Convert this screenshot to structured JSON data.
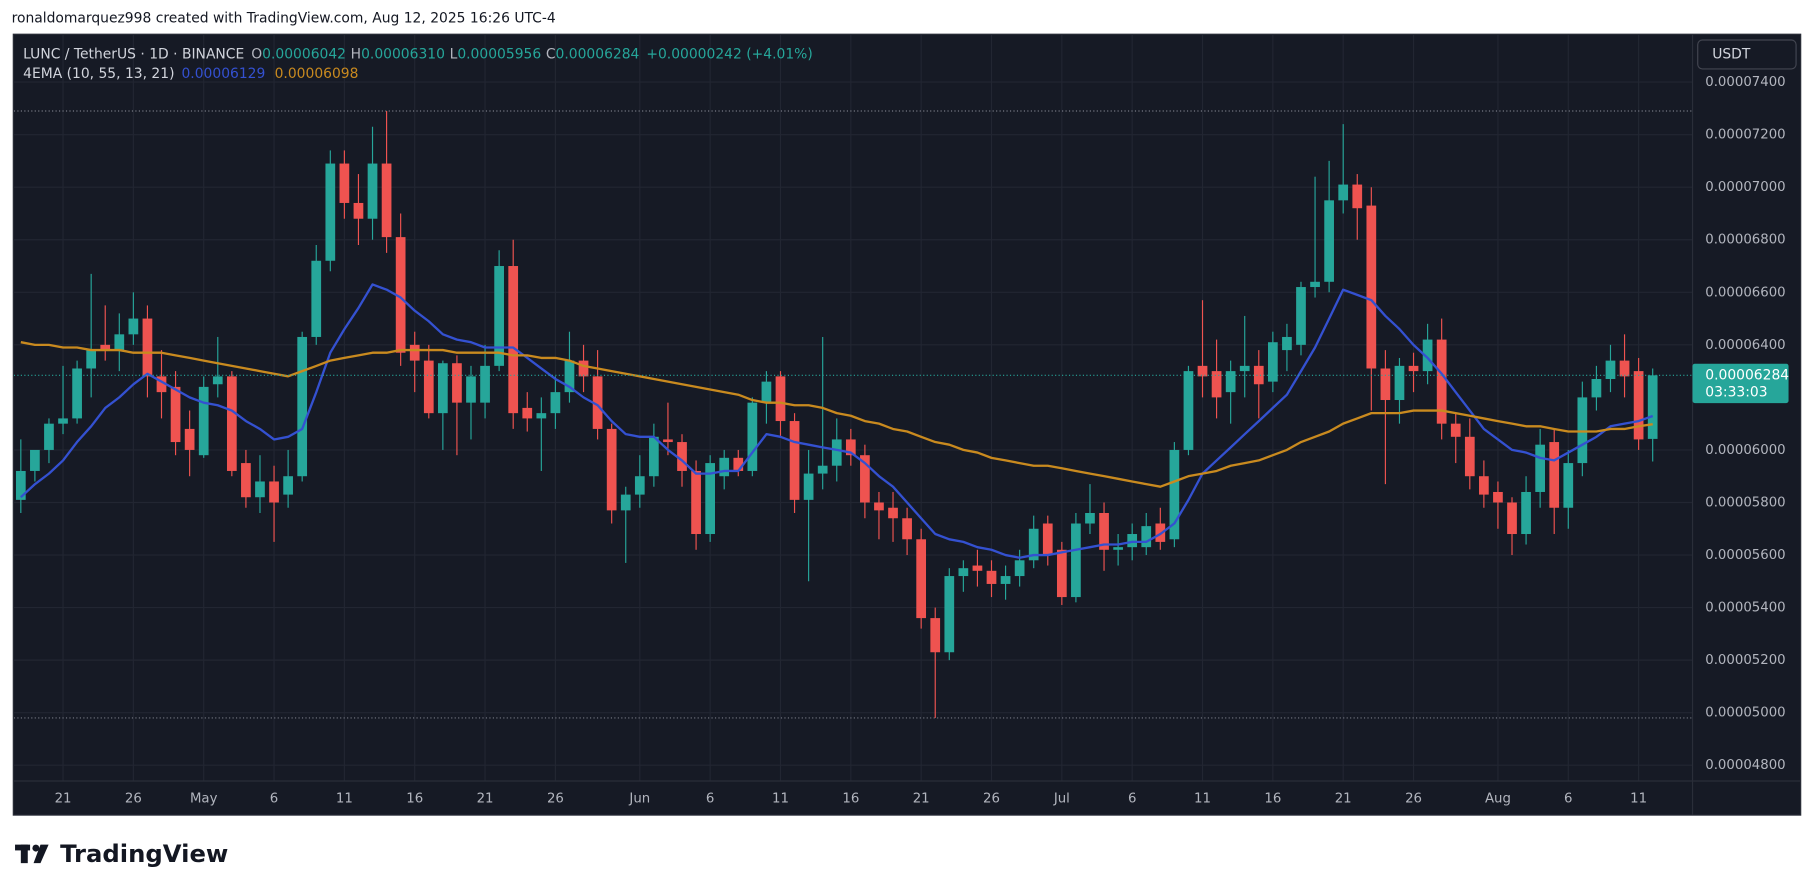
{
  "page": {
    "credit": "ronaldomarquez998 created with TradingView.com, Aug 12, 2025 16:26 UTC-4",
    "logo": "TradingView"
  },
  "chart_data": {
    "type": "candlestick",
    "title": "LUNC / TetherUS · 1D · BINANCE",
    "ohlc": [
      {
        "label": "O",
        "value": "0.00006042"
      },
      {
        "label": "H",
        "value": "0.00006310"
      },
      {
        "label": "L",
        "value": "0.00005956"
      },
      {
        "label": "C",
        "value": "0.00006284"
      }
    ],
    "change": "+0.00000242 (+4.01%)",
    "indicator": "4EMA (10, 55, 13, 21)",
    "currency": "USDT",
    "last_price_label": "0.00006284",
    "countdown": "03:33:03",
    "up_color": "#26a69a",
    "down_color": "#ef5350",
    "categories": [
      "Apr 18",
      "Apr 19",
      "Apr 20",
      "Apr 21",
      "Apr 22",
      "Apr 23",
      "Apr 24",
      "Apr 25",
      "Apr 26",
      "Apr 27",
      "Apr 28",
      "Apr 29",
      "Apr 30",
      "May 1",
      "May 2",
      "May 3",
      "May 4",
      "May 5",
      "May 6",
      "May 7",
      "May 8",
      "May 9",
      "May 10",
      "May 11",
      "May 12",
      "May 13",
      "May 14",
      "May 15",
      "May 16",
      "May 17",
      "May 18",
      "May 19",
      "May 20",
      "May 21",
      "May 22",
      "May 23",
      "May 24",
      "May 25",
      "May 26",
      "May 27",
      "May 28",
      "May 29",
      "May 30",
      "May 31",
      "Jun 1",
      "Jun 2",
      "Jun 3",
      "Jun 4",
      "Jun 5",
      "Jun 6",
      "Jun 7",
      "Jun 8",
      "Jun 9",
      "Jun 10",
      "Jun 11",
      "Jun 12",
      "Jun 13",
      "Jun 14",
      "Jun 15",
      "Jun 16",
      "Jun 17",
      "Jun 18",
      "Jun 19",
      "Jun 20",
      "Jun 21",
      "Jun 22",
      "Jun 23",
      "Jun 24",
      "Jun 25",
      "Jun 26",
      "Jun 27",
      "Jun 28",
      "Jun 29",
      "Jun 30",
      "Jul 1",
      "Jul 2",
      "Jul 3",
      "Jul 4",
      "Jul 5",
      "Jul 6",
      "Jul 7",
      "Jul 8",
      "Jul 9",
      "Jul 10",
      "Jul 11",
      "Jul 12",
      "Jul 13",
      "Jul 14",
      "Jul 15",
      "Jul 16",
      "Jul 17",
      "Jul 18",
      "Jul 19",
      "Jul 20",
      "Jul 21",
      "Jul 22",
      "Jul 23",
      "Jul 24",
      "Jul 25",
      "Jul 26",
      "Jul 27",
      "Jul 28",
      "Jul 29",
      "Jul 30",
      "Jul 31",
      "Aug 1",
      "Aug 2",
      "Aug 3",
      "Aug 4",
      "Aug 5",
      "Aug 6",
      "Aug 7",
      "Aug 8",
      "Aug 9",
      "Aug 10",
      "Aug 11",
      "Aug 12"
    ],
    "open": [
      5.81e-05,
      5.92e-05,
      6e-05,
      6.1e-05,
      6.12e-05,
      6.31e-05,
      6.4e-05,
      6.38e-05,
      6.44e-05,
      6.5e-05,
      6.28e-05,
      6.24e-05,
      6.08e-05,
      5.98e-05,
      6.25e-05,
      6.28e-05,
      5.95e-05,
      5.82e-05,
      5.88e-05,
      5.83e-05,
      5.9e-05,
      6.43e-05,
      6.72e-05,
      7.09e-05,
      6.94e-05,
      6.88e-05,
      7.09e-05,
      6.81e-05,
      6.4e-05,
      6.34e-05,
      6.14e-05,
      6.33e-05,
      6.18e-05,
      6.18e-05,
      6.32e-05,
      6.7e-05,
      6.16e-05,
      6.12e-05,
      6.14e-05,
      6.22e-05,
      6.34e-05,
      6.28e-05,
      6.08e-05,
      5.77e-05,
      5.83e-05,
      5.9e-05,
      6.04e-05,
      6.03e-05,
      5.92e-05,
      5.68e-05,
      5.9e-05,
      5.97e-05,
      5.92e-05,
      6.18e-05,
      6.28e-05,
      6.11e-05,
      5.81e-05,
      5.91e-05,
      5.94e-05,
      6.04e-05,
      5.98e-05,
      5.8e-05,
      5.78e-05,
      5.74e-05,
      5.66e-05,
      5.36e-05,
      5.23e-05,
      5.52e-05,
      5.56e-05,
      5.54e-05,
      5.49e-05,
      5.52e-05,
      5.58e-05,
      5.72e-05,
      5.62e-05,
      5.44e-05,
      5.72e-05,
      5.76e-05,
      5.62e-05,
      5.63e-05,
      5.63e-05,
      5.72e-05,
      5.66e-05,
      6e-05,
      6.32e-05,
      6.3e-05,
      6.22e-05,
      6.3e-05,
      6.32e-05,
      6.26e-05,
      6.38e-05,
      6.4e-05,
      6.62e-05,
      6.64e-05,
      6.95e-05,
      7.01e-05,
      6.93e-05,
      6.31e-05,
      6.19e-05,
      6.32e-05,
      6.3e-05,
      6.42e-05,
      6.1e-05,
      6.05e-05,
      5.9e-05,
      5.84e-05,
      5.8e-05,
      5.68e-05,
      5.84e-05,
      6.03e-05,
      5.78e-05,
      5.95e-05,
      6.2e-05,
      6.27e-05,
      6.34e-05,
      6.3e-05,
      6.042e-05
    ],
    "high": [
      6.04e-05,
      6e-05,
      6.12e-05,
      6.32e-05,
      6.34e-05,
      6.67e-05,
      6.55e-05,
      6.52e-05,
      6.6e-05,
      6.55e-05,
      6.38e-05,
      6.3e-05,
      6.15e-05,
      6.28e-05,
      6.43e-05,
      6.3e-05,
      6e-05,
      5.98e-05,
      5.94e-05,
      6e-05,
      6.45e-05,
      6.78e-05,
      7.14e-05,
      7.14e-05,
      7.05e-05,
      7.23e-05,
      7.29e-05,
      6.9e-05,
      6.45e-05,
      6.4e-05,
      6.34e-05,
      6.36e-05,
      6.32e-05,
      6.4e-05,
      6.76e-05,
      6.8e-05,
      6.22e-05,
      6.2e-05,
      6.28e-05,
      6.45e-05,
      6.4e-05,
      6.38e-05,
      6.1e-05,
      5.86e-05,
      5.98e-05,
      6.1e-05,
      6.18e-05,
      6.06e-05,
      5.96e-05,
      5.98e-05,
      6e-05,
      6e-05,
      6.2e-05,
      6.3e-05,
      6.3e-05,
      6.14e-05,
      6e-05,
      6.43e-05,
      6.12e-05,
      6.08e-05,
      6.02e-05,
      5.84e-05,
      5.84e-05,
      5.78e-05,
      5.7e-05,
      5.4e-05,
      5.55e-05,
      5.58e-05,
      5.62e-05,
      5.58e-05,
      5.56e-05,
      5.62e-05,
      5.75e-05,
      5.75e-05,
      5.65e-05,
      5.76e-05,
      5.87e-05,
      5.8e-05,
      5.68e-05,
      5.72e-05,
      5.76e-05,
      5.78e-05,
      6.03e-05,
      6.32e-05,
      6.57e-05,
      6.42e-05,
      6.34e-05,
      6.51e-05,
      6.38e-05,
      6.45e-05,
      6.48e-05,
      6.64e-05,
      7.04e-05,
      7.1e-05,
      7.24e-05,
      7.05e-05,
      7e-05,
      6.38e-05,
      6.35e-05,
      6.37e-05,
      6.48e-05,
      6.5e-05,
      6.14e-05,
      6.12e-05,
      5.96e-05,
      5.88e-05,
      5.82e-05,
      5.9e-05,
      6.08e-05,
      6.08e-05,
      6e-05,
      6.26e-05,
      6.32e-05,
      6.4e-05,
      6.44e-05,
      6.35e-05,
      6.31e-05
    ],
    "low": [
      5.76e-05,
      5.88e-05,
      5.95e-05,
      6.06e-05,
      6.1e-05,
      6.2e-05,
      6.34e-05,
      6.3e-05,
      6.4e-05,
      6.2e-05,
      6.12e-05,
      5.98e-05,
      5.9e-05,
      5.97e-05,
      6.2e-05,
      5.9e-05,
      5.78e-05,
      5.76e-05,
      5.65e-05,
      5.78e-05,
      5.88e-05,
      6.4e-05,
      6.68e-05,
      6.88e-05,
      6.78e-05,
      6.8e-05,
      6.75e-05,
      6.32e-05,
      6.22e-05,
      6.12e-05,
      6e-05,
      5.98e-05,
      6.04e-05,
      6.12e-05,
      6.3e-05,
      6.08e-05,
      6.07e-05,
      5.92e-05,
      6.08e-05,
      6.18e-05,
      6.22e-05,
      6.04e-05,
      5.72e-05,
      5.57e-05,
      5.78e-05,
      5.86e-05,
      5.98e-05,
      5.86e-05,
      5.62e-05,
      5.65e-05,
      5.85e-05,
      5.9e-05,
      5.9e-05,
      6.1e-05,
      6.05e-05,
      5.76e-05,
      5.5e-05,
      5.85e-05,
      5.88e-05,
      5.94e-05,
      5.74e-05,
      5.66e-05,
      5.65e-05,
      5.6e-05,
      5.32e-05,
      4.98e-05,
      5.2e-05,
      5.46e-05,
      5.48e-05,
      5.44e-05,
      5.43e-05,
      5.48e-05,
      5.55e-05,
      5.56e-05,
      5.41e-05,
      5.42e-05,
      5.68e-05,
      5.54e-05,
      5.56e-05,
      5.58e-05,
      5.6e-05,
      5.62e-05,
      5.63e-05,
      5.98e-05,
      6.2e-05,
      6.12e-05,
      6.1e-05,
      6.2e-05,
      6.12e-05,
      6.22e-05,
      6.3e-05,
      6.36e-05,
      6.58e-05,
      6.6e-05,
      6.9e-05,
      6.8e-05,
      6.15e-05,
      5.87e-05,
      6.1e-05,
      6.22e-05,
      6.25e-05,
      6.04e-05,
      5.95e-05,
      5.85e-05,
      5.78e-05,
      5.7e-05,
      5.6e-05,
      5.64e-05,
      5.78e-05,
      5.68e-05,
      5.7e-05,
      5.9e-05,
      6.15e-05,
      6.22e-05,
      6.2e-05,
      6e-05,
      5.956e-05
    ],
    "close": [
      5.92e-05,
      6e-05,
      6.1e-05,
      6.12e-05,
      6.31e-05,
      6.38e-05,
      6.38e-05,
      6.44e-05,
      6.5e-05,
      6.28e-05,
      6.22e-05,
      6.03e-05,
      6e-05,
      6.24e-05,
      6.28e-05,
      5.92e-05,
      5.82e-05,
      5.88e-05,
      5.8e-05,
      5.9e-05,
      6.43e-05,
      6.72e-05,
      7.09e-05,
      6.94e-05,
      6.88e-05,
      7.09e-05,
      6.81e-05,
      6.37e-05,
      6.34e-05,
      6.14e-05,
      6.33e-05,
      6.18e-05,
      6.28e-05,
      6.32e-05,
      6.7e-05,
      6.14e-05,
      6.12e-05,
      6.14e-05,
      6.22e-05,
      6.34e-05,
      6.28e-05,
      6.08e-05,
      5.77e-05,
      5.83e-05,
      5.9e-05,
      6.05e-05,
      6.03e-05,
      5.92e-05,
      5.68e-05,
      5.95e-05,
      5.97e-05,
      5.92e-05,
      6.18e-05,
      6.26e-05,
      6.11e-05,
      5.81e-05,
      5.91e-05,
      5.94e-05,
      6.04e-05,
      5.98e-05,
      5.8e-05,
      5.77e-05,
      5.74e-05,
      5.66e-05,
      5.36e-05,
      5.23e-05,
      5.52e-05,
      5.55e-05,
      5.54e-05,
      5.49e-05,
      5.52e-05,
      5.58e-05,
      5.7e-05,
      5.6e-05,
      5.44e-05,
      5.72e-05,
      5.76e-05,
      5.62e-05,
      5.63e-05,
      5.68e-05,
      5.71e-05,
      5.65e-05,
      6e-05,
      6.3e-05,
      6.28e-05,
      6.2e-05,
      6.3e-05,
      6.32e-05,
      6.25e-05,
      6.41e-05,
      6.43e-05,
      6.62e-05,
      6.64e-05,
      6.95e-05,
      7.01e-05,
      6.92e-05,
      6.31e-05,
      6.19e-05,
      6.32e-05,
      6.3e-05,
      6.42e-05,
      6.1e-05,
      6.05e-05,
      5.9e-05,
      5.83e-05,
      5.8e-05,
      5.68e-05,
      5.84e-05,
      6.02e-05,
      5.78e-05,
      5.95e-05,
      6.2e-05,
      6.27e-05,
      6.34e-05,
      6.28e-05,
      6.04e-05,
      6.284e-05
    ],
    "ema_lines": [
      {
        "color": "#3451d1",
        "value_label": "0.00006129",
        "values": [
          5.82e-05,
          5.87e-05,
          5.91e-05,
          5.96e-05,
          6.03e-05,
          6.09e-05,
          6.16e-05,
          6.2e-05,
          6.25e-05,
          6.29e-05,
          6.26e-05,
          6.23e-05,
          6.2e-05,
          6.18e-05,
          6.17e-05,
          6.15e-05,
          6.11e-05,
          6.08e-05,
          6.04e-05,
          6.05e-05,
          6.08e-05,
          6.22e-05,
          6.37e-05,
          6.46e-05,
          6.54e-05,
          6.63e-05,
          6.61e-05,
          6.58e-05,
          6.53e-05,
          6.49e-05,
          6.44e-05,
          6.42e-05,
          6.41e-05,
          6.39e-05,
          6.39e-05,
          6.39e-05,
          6.35e-05,
          6.31e-05,
          6.27e-05,
          6.24e-05,
          6.2e-05,
          6.17e-05,
          6.11e-05,
          6.06e-05,
          6.05e-05,
          6.05e-05,
          6e-05,
          5.96e-05,
          5.91e-05,
          5.91e-05,
          5.92e-05,
          5.92e-05,
          5.99e-05,
          6.06e-05,
          6.05e-05,
          6.03e-05,
          6.02e-05,
          6.01e-05,
          6e-05,
          5.99e-05,
          5.95e-05,
          5.9e-05,
          5.86e-05,
          5.8e-05,
          5.74e-05,
          5.68e-05,
          5.66e-05,
          5.65e-05,
          5.63e-05,
          5.62e-05,
          5.6e-05,
          5.59e-05,
          5.6e-05,
          5.6e-05,
          5.61e-05,
          5.62e-05,
          5.63e-05,
          5.64e-05,
          5.64e-05,
          5.65e-05,
          5.65e-05,
          5.68e-05,
          5.72e-05,
          5.81e-05,
          5.91e-05,
          5.96e-05,
          6.01e-05,
          6.06e-05,
          6.11e-05,
          6.16e-05,
          6.21e-05,
          6.3e-05,
          6.39e-05,
          6.5e-05,
          6.61e-05,
          6.59e-05,
          6.57e-05,
          6.51e-05,
          6.46e-05,
          6.4e-05,
          6.35e-05,
          6.29e-05,
          6.22e-05,
          6.15e-05,
          6.08e-05,
          6.04e-05,
          6e-05,
          5.99e-05,
          5.97e-05,
          5.96e-05,
          5.99e-05,
          6.02e-05,
          6.05e-05,
          6.09e-05,
          6.1e-05,
          6.11e-05,
          6.129e-05
        ]
      },
      {
        "color": "#c98a1f",
        "value_label": "0.00006098",
        "values": [
          6.41e-05,
          6.4e-05,
          6.4e-05,
          6.39e-05,
          6.39e-05,
          6.38e-05,
          6.38e-05,
          6.38e-05,
          6.37e-05,
          6.37e-05,
          6.37e-05,
          6.36e-05,
          6.35e-05,
          6.34e-05,
          6.33e-05,
          6.32e-05,
          6.31e-05,
          6.3e-05,
          6.29e-05,
          6.28e-05,
          6.3e-05,
          6.32e-05,
          6.34e-05,
          6.35e-05,
          6.36e-05,
          6.37e-05,
          6.37e-05,
          6.38e-05,
          6.38e-05,
          6.38e-05,
          6.38e-05,
          6.37e-05,
          6.37e-05,
          6.37e-05,
          6.37e-05,
          6.36e-05,
          6.36e-05,
          6.35e-05,
          6.35e-05,
          6.34e-05,
          6.32e-05,
          6.31e-05,
          6.3e-05,
          6.29e-05,
          6.28e-05,
          6.27e-05,
          6.26e-05,
          6.25e-05,
          6.24e-05,
          6.23e-05,
          6.22e-05,
          6.21e-05,
          6.19e-05,
          6.18e-05,
          6.18e-05,
          6.17e-05,
          6.17e-05,
          6.16e-05,
          6.14e-05,
          6.13e-05,
          6.11e-05,
          6.1e-05,
          6.08e-05,
          6.07e-05,
          6.05e-05,
          6.03e-05,
          6.02e-05,
          6e-05,
          5.99e-05,
          5.97e-05,
          5.96e-05,
          5.95e-05,
          5.94e-05,
          5.94e-05,
          5.93e-05,
          5.92e-05,
          5.91e-05,
          5.9e-05,
          5.89e-05,
          5.88e-05,
          5.87e-05,
          5.86e-05,
          5.88e-05,
          5.9e-05,
          5.91e-05,
          5.92e-05,
          5.94e-05,
          5.95e-05,
          5.96e-05,
          5.98e-05,
          6e-05,
          6.03e-05,
          6.05e-05,
          6.07e-05,
          6.1e-05,
          6.12e-05,
          6.14e-05,
          6.14e-05,
          6.14e-05,
          6.15e-05,
          6.15e-05,
          6.15e-05,
          6.14e-05,
          6.13e-05,
          6.12e-05,
          6.11e-05,
          6.1e-05,
          6.09e-05,
          6.09e-05,
          6.08e-05,
          6.07e-05,
          6.07e-05,
          6.07e-05,
          6.08e-05,
          6.08e-05,
          6.09e-05,
          6.098e-05
        ]
      }
    ],
    "ylim": [
      4.74e-05,
      7.58e-05
    ],
    "yticks": [
      {
        "value": 7.4e-05,
        "label": "0.00007400"
      },
      {
        "value": 7.2e-05,
        "label": "0.00007200"
      },
      {
        "value": 7e-05,
        "label": "0.00007000"
      },
      {
        "value": 6.8e-05,
        "label": "0.00006800"
      },
      {
        "value": 6.6e-05,
        "label": "0.00006600"
      },
      {
        "value": 6.4e-05,
        "label": "0.00006400"
      },
      {
        "value": 6e-05,
        "label": "0.00006000"
      },
      {
        "value": 5.8e-05,
        "label": "0.00005800"
      },
      {
        "value": 5.6e-05,
        "label": "0.00005600"
      },
      {
        "value": 5.4e-05,
        "label": "0.00005400"
      },
      {
        "value": 5.2e-05,
        "label": "0.00005200"
      },
      {
        "value": 5e-05,
        "label": "0.00005000"
      },
      {
        "value": 4.8e-05,
        "label": "0.00004800"
      }
    ],
    "xticks": [
      {
        "value": "Apr 21",
        "label": "21"
      },
      {
        "value": "Apr 26",
        "label": "26"
      },
      {
        "value": "May 1",
        "label": "May"
      },
      {
        "value": "May 6",
        "label": "6"
      },
      {
        "value": "May 11",
        "label": "11"
      },
      {
        "value": "May 16",
        "label": "16"
      },
      {
        "value": "May 21",
        "label": "21"
      },
      {
        "value": "May 26",
        "label": "26"
      },
      {
        "value": "Jun 1",
        "label": "Jun"
      },
      {
        "value": "Jun 6",
        "label": "6"
      },
      {
        "value": "Jun 11",
        "label": "11"
      },
      {
        "value": "Jun 16",
        "label": "16"
      },
      {
        "value": "Jun 21",
        "label": "21"
      },
      {
        "value": "Jun 26",
        "label": "26"
      },
      {
        "value": "Jul 1",
        "label": "Jul"
      },
      {
        "value": "Jul 6",
        "label": "6"
      },
      {
        "value": "Jul 11",
        "label": "11"
      },
      {
        "value": "Jul 16",
        "label": "16"
      },
      {
        "value": "Jul 21",
        "label": "21"
      },
      {
        "value": "Jul 26",
        "label": "26"
      },
      {
        "value": "Aug 1",
        "label": "Aug"
      },
      {
        "value": "Aug 6",
        "label": "6"
      },
      {
        "value": "Aug 11",
        "label": "11"
      }
    ],
    "grid": true
  }
}
